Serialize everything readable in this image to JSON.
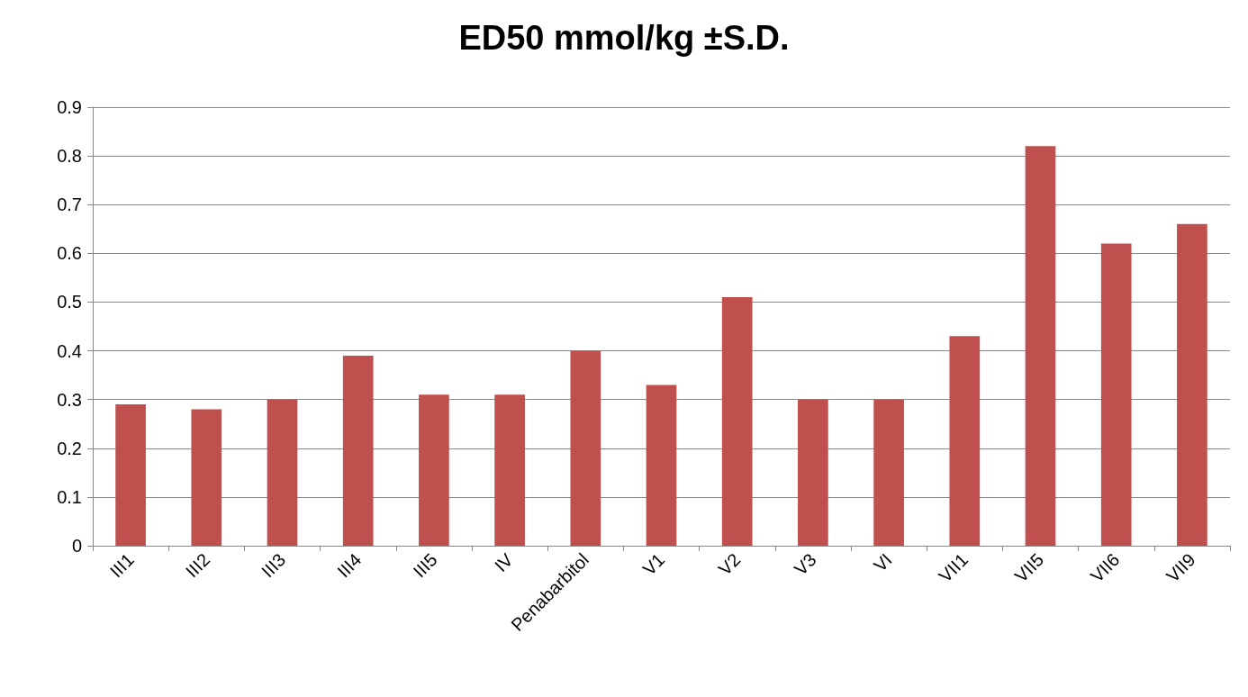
{
  "chart_data": {
    "type": "bar",
    "title": "ED50 mmol/kg ±S.D.",
    "categories": [
      "III1",
      "III2",
      "III3",
      "III4",
      "III5",
      "IV",
      "Penabarbitol",
      "V1",
      "V2",
      "V3",
      "VI",
      "VII1",
      "VII5",
      "VII6",
      "VII9"
    ],
    "values": [
      0.29,
      0.28,
      0.3,
      0.39,
      0.31,
      0.31,
      0.4,
      0.33,
      0.51,
      0.3,
      0.3,
      0.43,
      0.82,
      0.62,
      0.66
    ],
    "color": "#c0504d",
    "ylim": [
      0,
      0.9
    ],
    "yticks": [
      0,
      0.1,
      0.2,
      0.3,
      0.4,
      0.5,
      0.6,
      0.7,
      0.8,
      0.9
    ],
    "grid": "y"
  }
}
